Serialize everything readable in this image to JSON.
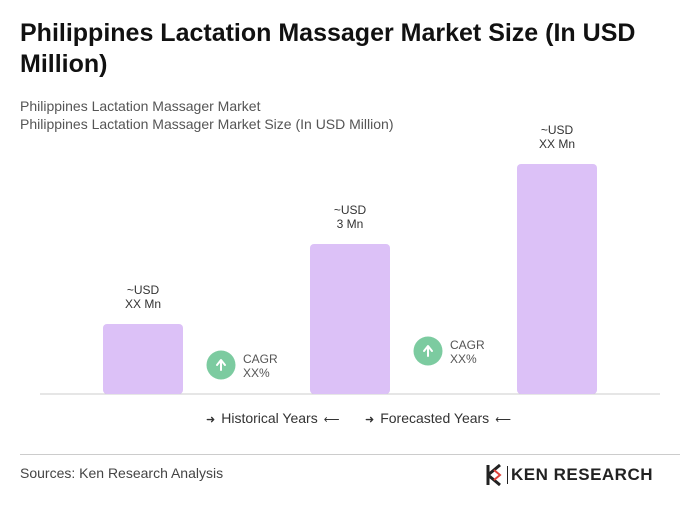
{
  "title": "Philippines Lactation Massager Market Size (In USD Million)",
  "subtitle1": "Philippines Lactation Massager Market",
  "subtitle2": "Philippines Lactation Massager Market Size (In USD Million)",
  "colors": {
    "bar": "#dcc1f7",
    "cagr_circle": "#7ccba0",
    "axis": "#cccccc"
  },
  "chart_data": {
    "type": "bar",
    "categories": [
      "",
      "",
      ""
    ],
    "values": [
      1.4,
      3,
      4.6
    ],
    "value_labels": [
      [
        "~USD",
        "XX Mn"
      ],
      [
        "~USD",
        "3 Mn"
      ],
      [
        "~USD",
        "XX Mn"
      ]
    ],
    "cagr_labels": [
      [
        "CAGR",
        "XX%"
      ],
      [
        "CAGR",
        "XX%"
      ]
    ],
    "ylim": [
      0,
      4.6
    ],
    "grid": false,
    "xlabel": "",
    "ylabel": ""
  },
  "legend": {
    "historical": "Historical Years",
    "forecasted": "Forecasted Years",
    "arrow_right": "➜",
    "arrow_left": "⟵"
  },
  "icons": {
    "cagr": "arrow-up-icon",
    "logo": "ken-research-logo"
  },
  "source": "Sources: Ken Research Analysis",
  "logo_text": "KEN RESEARCH"
}
